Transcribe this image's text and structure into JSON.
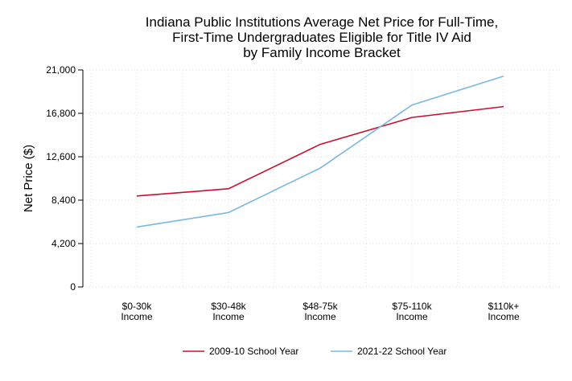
{
  "chart_data": {
    "type": "line",
    "title_lines": [
      "Indiana Public Institutions Average Net Price for Full-Time,",
      "First-Time Undergraduates Eligible for Title IV Aid",
      "by Family Income Bracket"
    ],
    "ylabel": "Net Price ($)",
    "ylim": [
      0,
      21000
    ],
    "yticks": [
      {
        "value": 0,
        "label": "0"
      },
      {
        "value": 4200,
        "label": "4,200"
      },
      {
        "value": 8400,
        "label": "8,400"
      },
      {
        "value": 12600,
        "label": "12,600"
      },
      {
        "value": 16800,
        "label": "16,800"
      },
      {
        "value": 21000,
        "label": "21,000"
      }
    ],
    "categories": [
      [
        "$0-30k",
        "Income"
      ],
      [
        "$30-48k",
        "Income"
      ],
      [
        "$48-75k",
        "Income"
      ],
      [
        "$75-110k",
        "Income"
      ],
      [
        "$110k+",
        "Income"
      ]
    ],
    "grid": true,
    "legend_position": "bottom",
    "series": [
      {
        "name": "2009-10 School Year",
        "color": "#c8102e",
        "values": [
          8800,
          9500,
          13800,
          16400,
          17450
        ]
      },
      {
        "name": "2021-22 School Year",
        "color": "#7ab8e0",
        "values": [
          5800,
          7200,
          11500,
          17600,
          20400
        ]
      }
    ]
  }
}
